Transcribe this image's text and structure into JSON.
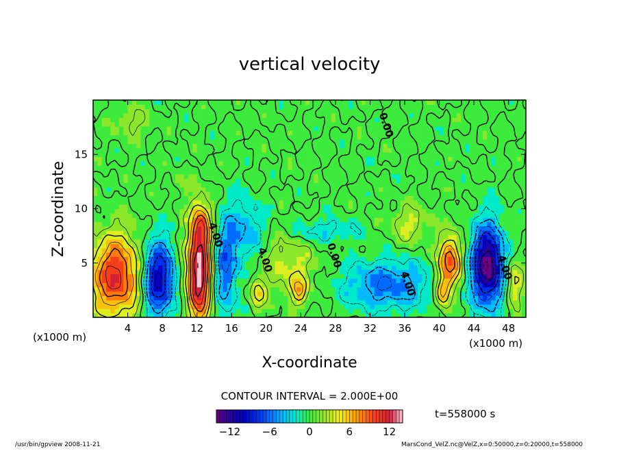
{
  "chart_data": {
    "type": "heatmap",
    "title": "vertical velocity",
    "xlabel": "X-coordinate",
    "ylabel": "Z-coordinate",
    "x_unit": "(x1000 m)",
    "x_unit_right": "(x1000 m)",
    "xlim": [
      0,
      50
    ],
    "ylim": [
      0,
      20
    ],
    "x_ticks": [
      4,
      8,
      12,
      16,
      20,
      24,
      28,
      32,
      36,
      40,
      44,
      48
    ],
    "y_ticks": [
      5,
      10,
      15
    ],
    "contour_interval_text": "CONTOUR INTERVAL = 2.000E+00",
    "contour_labels": [
      {
        "text": "4.00",
        "x": 13.8,
        "z": 7.5
      },
      {
        "text": "4.00",
        "x": 19.5,
        "z": 5.2
      },
      {
        "text": "0.00",
        "x": 33.5,
        "z": 17.6
      },
      {
        "text": "0.00",
        "x": 27.5,
        "z": 5.6
      },
      {
        "text": "4.00",
        "x": 36.0,
        "z": 3.0
      },
      {
        "text": "4.00",
        "x": 47.2,
        "z": 4.5
      }
    ],
    "colorbar": {
      "min": -14,
      "max": 14,
      "ticks": [
        -12,
        -6,
        0,
        6,
        12
      ],
      "tick_labels": [
        "−12",
        "−6",
        "0",
        "6",
        "12"
      ]
    },
    "features": [
      {
        "x": 2.6,
        "z": 3.8,
        "value": 11,
        "sx": 2.1,
        "sz": 2.6
      },
      {
        "x": 7.5,
        "z": 3.6,
        "value": -11,
        "sx": 1.3,
        "sz": 2.4
      },
      {
        "x": 12.2,
        "z": 4.0,
        "value": 14,
        "sx": 1.0,
        "sz": 3.2
      },
      {
        "x": 12.5,
        "z": 8.5,
        "value": 6,
        "sx": 0.8,
        "sz": 1.6
      },
      {
        "x": 15.3,
        "z": 4.5,
        "value": -6,
        "sx": 1.0,
        "sz": 3.0
      },
      {
        "x": 17.5,
        "z": 8.0,
        "value": -4,
        "sx": 1.6,
        "sz": 2.0
      },
      {
        "x": 22.5,
        "z": 5.0,
        "value": 3.5,
        "sx": 2.2,
        "sz": 2.0
      },
      {
        "x": 23.8,
        "z": 2.5,
        "value": 5,
        "sx": 0.7,
        "sz": 1.0
      },
      {
        "x": 19.0,
        "z": 2.3,
        "value": 5,
        "sx": 0.6,
        "sz": 0.9
      },
      {
        "x": 26.5,
        "z": 8.0,
        "value": -3,
        "sx": 3.0,
        "sz": 0.8
      },
      {
        "x": 34.0,
        "z": 3.0,
        "value": -6,
        "sx": 3.4,
        "sz": 1.6
      },
      {
        "x": 36.5,
        "z": 8.6,
        "value": 3.5,
        "sx": 1.5,
        "sz": 1.2
      },
      {
        "x": 41.2,
        "z": 5.2,
        "value": 10,
        "sx": 0.9,
        "sz": 1.6
      },
      {
        "x": 40.4,
        "z": 2.4,
        "value": 7,
        "sx": 0.6,
        "sz": 1.0
      },
      {
        "x": 45.6,
        "z": 4.8,
        "value": -14,
        "sx": 1.3,
        "sz": 2.6
      },
      {
        "x": 48.6,
        "z": 3.2,
        "value": 5,
        "sx": 0.7,
        "sz": 1.6
      },
      {
        "x": 4.5,
        "z": 18.0,
        "value": 2.5,
        "sx": 1.5,
        "sz": 1.0
      },
      {
        "x": 10.0,
        "z": 12.5,
        "value": 2.0,
        "sx": 0.6,
        "sz": 0.6
      }
    ]
  },
  "time_label": "t=558000 s",
  "footer_left": "/usr/bin/gpview  2008-11-21",
  "footer_right": "MarsCond_VelZ.nc@VelZ,x=0:50000,z=0:20000,t=558000"
}
